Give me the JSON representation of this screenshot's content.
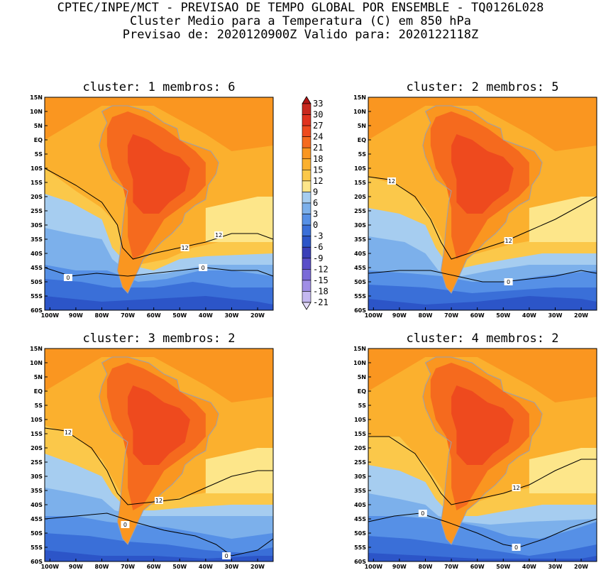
{
  "header": {
    "line1": "CPTEC/INPE/MCT - PREVISAO DE TEMPO GLOBAL POR ENSEMBLE - TQ0126L028",
    "line2": "Cluster Medio para a Temperatura (C) em 850 hPa",
    "line3": "Previsao de: 2020120900Z   Valido para: 2020122118Z"
  },
  "panels": [
    {
      "title": "cluster: 1  membros: 6",
      "contour_labels": [
        "12",
        "12",
        "0",
        "0"
      ]
    },
    {
      "title": "cluster: 2  membros: 5",
      "contour_labels": [
        "12",
        "12",
        "0"
      ]
    },
    {
      "title": "cluster: 3  membros: 2",
      "contour_labels": [
        "12",
        "12",
        "0",
        "0"
      ]
    },
    {
      "title": "cluster: 4  membros: 2",
      "contour_labels": [
        "12",
        "0",
        "0"
      ]
    }
  ],
  "axes": {
    "lat_labels": [
      "15N",
      "10N",
      "5N",
      "EQ",
      "5S",
      "10S",
      "15S",
      "20S",
      "25S",
      "30S",
      "35S",
      "40S",
      "45S",
      "50S",
      "55S",
      "60S"
    ],
    "lon_labels": [
      "100W",
      "90W",
      "80W",
      "70W",
      "60W",
      "50W",
      "40W",
      "30W",
      "20W"
    ]
  },
  "colorbar": {
    "labels": [
      "33",
      "30",
      "27",
      "24",
      "21",
      "18",
      "15",
      "12",
      "9",
      "6",
      "3",
      "0",
      "-3",
      "-6",
      "-9",
      "-12",
      "-15",
      "-18",
      "-21"
    ],
    "colors": [
      "#b11414",
      "#c8281e",
      "#e0321e",
      "#ee4a1e",
      "#f56a1e",
      "#fa9620",
      "#fbb02e",
      "#fbc84a",
      "#fde68a",
      "#a6cdf0",
      "#7cb0eb",
      "#5690e6",
      "#3a6fd8",
      "#2c55c8",
      "#3a3fb8",
      "#5a4ec8",
      "#7a6ad8",
      "#a08ee6",
      "#c4b8f0",
      "#e4dcf8"
    ],
    "units": "C"
  }
}
